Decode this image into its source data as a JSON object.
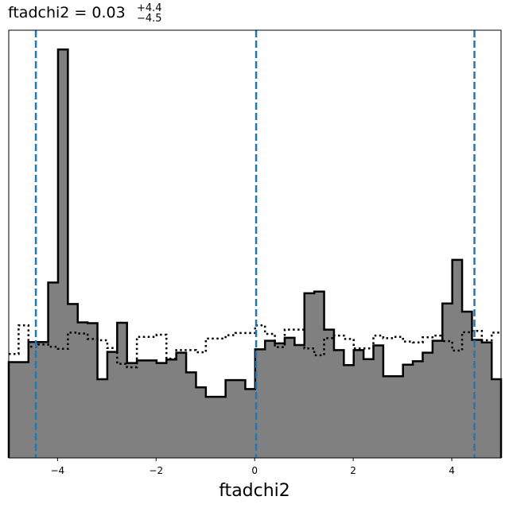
{
  "chart_data": {
    "type": "histogram",
    "title": {
      "parameter": "ftadchi2",
      "median": "0.03",
      "upper": "+4.4",
      "lower": "−4.5"
    },
    "xlabel": "ftadchi2",
    "ylabel": "",
    "xlim": [
      -4.99,
      5.0
    ],
    "ylim": [
      0,
      1.0
    ],
    "xticks": [
      -4,
      -2,
      0,
      2,
      4
    ],
    "xtick_labels": [
      "−4",
      "−2",
      "0",
      "2",
      "4"
    ],
    "yticks_visible": false,
    "bins": {
      "start": -4.99,
      "width": 0.2,
      "count": 50
    },
    "series": [
      {
        "name": "",
        "style": "filled-step",
        "fill": "#808080",
        "stroke": "#000000",
        "values": [
          0.224,
          0.224,
          0.271,
          0.271,
          0.41,
          0.955,
          0.36,
          0.317,
          0.315,
          0.184,
          0.248,
          0.316,
          0.222,
          0.228,
          0.228,
          0.222,
          0.23,
          0.246,
          0.2,
          0.165,
          0.143,
          0.143,
          0.182,
          0.182,
          0.161,
          0.254,
          0.274,
          0.268,
          0.281,
          0.264,
          0.385,
          0.389,
          0.3,
          0.252,
          0.217,
          0.252,
          0.231,
          0.263,
          0.191,
          0.191,
          0.218,
          0.226,
          0.246,
          0.274,
          0.361,
          0.463,
          0.342,
          0.276,
          0.27,
          0.184
        ]
      },
      {
        "name": "",
        "style": "dotted-step",
        "fill": "none",
        "stroke": "#000000",
        "values": [
          0.243,
          0.31,
          0.26,
          0.265,
          0.26,
          0.255,
          0.293,
          0.291,
          0.278,
          0.275,
          0.257,
          0.22,
          0.212,
          0.283,
          0.283,
          0.288,
          0.232,
          0.252,
          0.252,
          0.247,
          0.279,
          0.279,
          0.287,
          0.292,
          0.292,
          0.31,
          0.29,
          0.259,
          0.3,
          0.3,
          0.256,
          0.24,
          0.28,
          0.286,
          0.278,
          0.256,
          0.256,
          0.286,
          0.28,
          0.283,
          0.272,
          0.27,
          0.282,
          0.286,
          0.273,
          0.251,
          0.294,
          0.297,
          0.275,
          0.293
        ]
      }
    ],
    "vlines": [
      {
        "x": -4.44,
        "color": "#1f77b4",
        "style": "dashed"
      },
      {
        "x": 0.03,
        "color": "#1f77b4",
        "style": "dashed"
      },
      {
        "x": 4.46,
        "color": "#1f77b4",
        "style": "dashed"
      }
    ],
    "grid": false,
    "legend": "none"
  }
}
